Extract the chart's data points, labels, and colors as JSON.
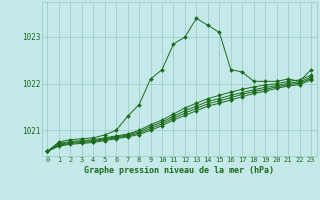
{
  "background_color": "#c5e8e8",
  "grid_color": "#9ecece",
  "line_color": "#1a6b1a",
  "marker_color": "#1a6b1a",
  "title": "Graphe pression niveau de la mer (hPa)",
  "xlim": [
    -0.5,
    23.5
  ],
  "ylim": [
    1020.45,
    1023.75
  ],
  "yticks": [
    1021,
    1022,
    1023
  ],
  "xticks": [
    0,
    1,
    2,
    3,
    4,
    5,
    6,
    7,
    8,
    9,
    10,
    11,
    12,
    13,
    14,
    15,
    16,
    17,
    18,
    19,
    20,
    21,
    22,
    23
  ],
  "series": [
    [
      1020.55,
      1020.75,
      1020.8,
      1020.82,
      1020.84,
      1020.9,
      1021.0,
      1021.3,
      1021.55,
      1022.1,
      1022.3,
      1022.85,
      1023.0,
      1023.4,
      1023.25,
      1023.1,
      1022.3,
      1022.25,
      1022.05,
      1022.05,
      1022.05,
      1022.1,
      1022.05,
      1022.3
    ],
    [
      1020.55,
      1020.72,
      1020.76,
      1020.78,
      1020.8,
      1020.84,
      1020.88,
      1020.92,
      1021.0,
      1021.12,
      1021.22,
      1021.35,
      1021.48,
      1021.58,
      1021.68,
      1021.75,
      1021.82,
      1021.88,
      1021.93,
      1021.97,
      1022.0,
      1022.05,
      1022.08,
      1022.18
    ],
    [
      1020.55,
      1020.7,
      1020.74,
      1020.76,
      1020.78,
      1020.82,
      1020.86,
      1020.9,
      1020.97,
      1021.08,
      1021.18,
      1021.3,
      1021.42,
      1021.52,
      1021.62,
      1021.68,
      1021.75,
      1021.81,
      1021.87,
      1021.92,
      1021.96,
      1022.01,
      1022.04,
      1022.14
    ],
    [
      1020.55,
      1020.68,
      1020.72,
      1020.74,
      1020.76,
      1020.8,
      1020.84,
      1020.88,
      1020.94,
      1021.04,
      1021.14,
      1021.26,
      1021.37,
      1021.47,
      1021.57,
      1021.63,
      1021.7,
      1021.77,
      1021.83,
      1021.88,
      1021.93,
      1021.98,
      1022.01,
      1022.11
    ],
    [
      1020.55,
      1020.66,
      1020.7,
      1020.72,
      1020.74,
      1020.78,
      1020.82,
      1020.86,
      1020.91,
      1021.0,
      1021.1,
      1021.22,
      1021.32,
      1021.42,
      1021.52,
      1021.58,
      1021.65,
      1021.72,
      1021.79,
      1021.84,
      1021.9,
      1021.95,
      1021.98,
      1022.08
    ]
  ]
}
